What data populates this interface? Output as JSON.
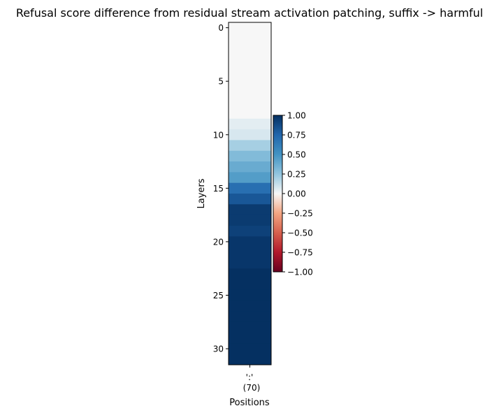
{
  "chart_data": {
    "type": "heatmap",
    "title": "Refusal score difference from residual stream activation patching, suffix -> harmful",
    "xlabel": "Positions",
    "ylabel": "Layers",
    "x_categories": [
      "':'\n(70)"
    ],
    "y_categories": [
      "0",
      "1",
      "2",
      "3",
      "4",
      "5",
      "6",
      "7",
      "8",
      "9",
      "10",
      "11",
      "12",
      "13",
      "14",
      "15",
      "16",
      "17",
      "18",
      "19",
      "20",
      "21",
      "22",
      "23",
      "24",
      "25",
      "26",
      "27",
      "28",
      "29",
      "30",
      "31"
    ],
    "y_ticks": [
      "0",
      "5",
      "10",
      "15",
      "20",
      "25",
      "30"
    ],
    "values": [
      [
        0.0
      ],
      [
        0.0
      ],
      [
        0.0
      ],
      [
        0.0
      ],
      [
        0.0
      ],
      [
        0.0
      ],
      [
        0.0
      ],
      [
        0.0
      ],
      [
        0.0
      ],
      [
        0.05
      ],
      [
        0.08
      ],
      [
        0.2
      ],
      [
        0.3
      ],
      [
        0.38
      ],
      [
        0.45
      ],
      [
        0.7
      ],
      [
        0.82
      ],
      [
        0.95
      ],
      [
        0.95
      ],
      [
        0.92
      ],
      [
        0.97
      ],
      [
        0.97
      ],
      [
        0.97
      ],
      [
        1.0
      ],
      [
        1.0
      ],
      [
        1.0
      ],
      [
        1.0
      ],
      [
        1.0
      ],
      [
        1.0
      ],
      [
        1.0
      ],
      [
        1.0
      ],
      [
        1.0
      ]
    ],
    "colormap": "RdBu",
    "vmin": -1.0,
    "vmax": 1.0,
    "colorbar": {
      "ticks": [
        "1.00",
        "0.75",
        "0.50",
        "0.25",
        "0.00",
        "−0.25",
        "−0.50",
        "−0.75",
        "−1.00"
      ]
    }
  }
}
